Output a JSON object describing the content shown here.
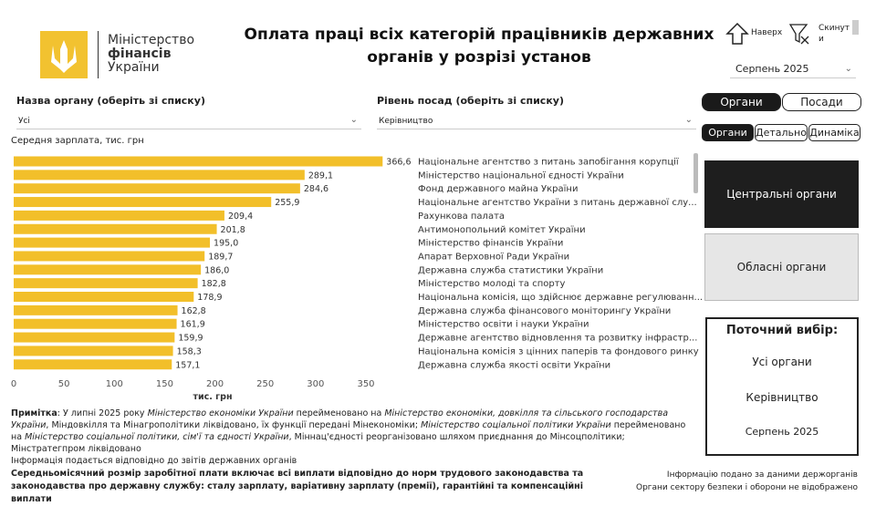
{
  "logo": {
    "line1": "Міністерство",
    "line2": "фінансів",
    "line3": "України"
  },
  "header": {
    "title": "Оплата праці всіх категорій працівників державних органів у розрізі установ"
  },
  "nav": {
    "up": "Наверх",
    "reset_line1": "Скинут",
    "reset_line2": "и"
  },
  "period_select": "Серпень 2025",
  "filters": [
    {
      "label": "Назва органу (оберіть зі списку)",
      "value": "Усі"
    },
    {
      "label": "Рівень посад (оберіть зі списку)",
      "value": "Керівництво"
    }
  ],
  "tabs_view": [
    "Органи",
    "Посади"
  ],
  "tabs_mode": [
    "Органи",
    "Детально",
    "Динаміка"
  ],
  "buttons": [
    "Центральні органи",
    "Обласні органи"
  ],
  "current": {
    "title": "Поточний вибір:",
    "items": [
      "Усі органи",
      "Керівництво",
      "Серпень 2025"
    ]
  },
  "chart_data": {
    "type": "bar",
    "orientation": "horizontal",
    "subtitle": "Середня зарплата, тис. грн",
    "xlabel": "тис. грн",
    "color": "#f2bf2a",
    "categories": [
      "Національне агентство з питань запобігання корупції",
      "Міністерство національної єдності України",
      "Фонд державного майна України",
      "Національне агентство України з питань державної слу...",
      "Рахункова палата",
      "Антимонопольний комітет України",
      "Міністерство фінансів України",
      "Апарат Верховної Ради України",
      "Державна служба статистики України",
      "Міністерство молоді та спорту",
      "Національна комісія, що здійснює державне регулюванн...",
      "Державна служба фінансового моніторингу України",
      "Міністерство освіти і науки України",
      "Державне агентство відновлення та розвитку інфрастр...",
      "Національна комісія з цінних паперів та фондового ринку",
      "Державна служба якості освіти України"
    ],
    "values": [
      366.6,
      289.1,
      284.6,
      255.9,
      209.4,
      201.8,
      195.0,
      189.7,
      186.0,
      182.8,
      178.9,
      162.8,
      161.9,
      159.9,
      158.3,
      157.1
    ],
    "value_labels": [
      "366,6",
      "289,1",
      "284,6",
      "255,9",
      "209,4",
      "201,8",
      "195,0",
      "189,7",
      "186,0",
      "182,8",
      "178,9",
      "162,8",
      "161,9",
      "159,9",
      "158,3",
      "157,1"
    ],
    "xlim": [
      0,
      370
    ],
    "xticks": [
      0,
      50,
      100,
      150,
      200,
      250,
      300,
      350
    ]
  },
  "note": {
    "parts": [
      {
        "text": "Примітка",
        "style": "bold"
      },
      {
        "text": ": У липні 2025 року ",
        "style": "normal"
      },
      {
        "text": "Міністерство економіки України",
        "style": "italic"
      },
      {
        "text": " перейменовано на ",
        "style": "normal"
      },
      {
        "text": "Міністерство економіки, довкілля та сільського господарства України",
        "style": "italic"
      },
      {
        "text": ", Міндовкілля та Мінагрополітики ліквідовано, їх функції передані Мінекономіки; ",
        "style": "normal"
      },
      {
        "text": "Міністерство соціальної політики України",
        "style": "italic"
      },
      {
        "text": " перейменовано на ",
        "style": "normal"
      },
      {
        "text": "Міністерство соціальної політики, сім'ї та єдності України",
        "style": "italic"
      },
      {
        "text": ", Міннац'єдності реорганізовано шляхом приєднання до Мінсоцполітики; Мінстратегпром ліквідовано",
        "style": "normal"
      }
    ],
    "source": "Інформація подається відповідно до звітів державних органів"
  },
  "footer": {
    "definition": "Середньомісячний розмір заробітної плати включає всі виплати відповідно до норм трудового законодавства та законодавства про державну службу: сталу зарплату, варіативну зарплату (премії), гарантійні та компенсаційні виплати",
    "source_line1": "Інформацію подано за даними держорганів",
    "source_line2": "Органи сектору безпеки і оборони не відображено"
  }
}
